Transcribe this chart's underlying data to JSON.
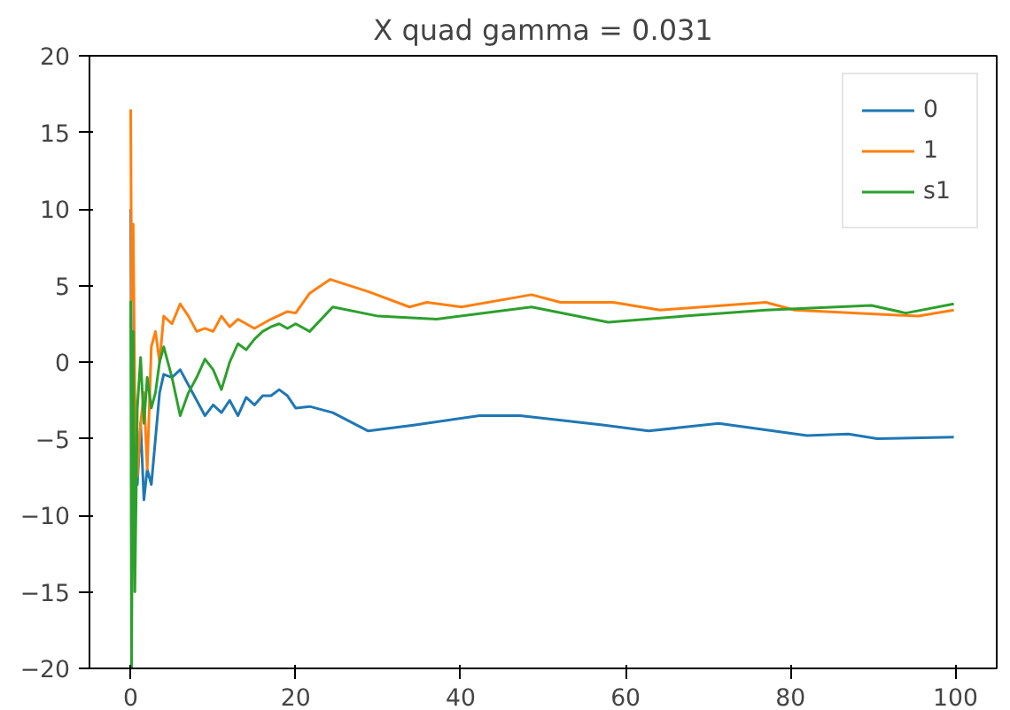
{
  "chart_data": {
    "type": "line",
    "title": "X quad gamma = 0.031",
    "xlim": [
      -5,
      105
    ],
    "ylim": [
      -20,
      20
    ],
    "xticks": [
      0,
      20,
      40,
      60,
      80,
      100
    ],
    "yticks": [
      {
        "value": -20,
        "label": "−20"
      },
      {
        "value": -15,
        "label": "−15"
      },
      {
        "value": -10,
        "label": "−10"
      },
      {
        "value": -5,
        "label": "−5"
      },
      0,
      5,
      10,
      15,
      20
    ],
    "grid": false,
    "legend": "top right",
    "line_style": "solid",
    "marker": "none",
    "series": [
      {
        "name": "0",
        "color": "#1f77b4",
        "x": [
          0,
          0.1,
          0.3,
          0.5,
          0.8,
          1.2,
          1.6,
          2,
          2.5,
          3,
          3.5,
          4,
          5,
          6,
          7,
          8,
          9,
          10,
          11,
          12,
          13,
          14,
          15,
          16,
          17,
          18,
          19,
          20,
          21.7,
          24.5,
          28.8,
          34.5,
          42.3,
          47.2,
          57.2,
          62.8,
          71.3,
          82,
          87,
          90.5,
          99.8
        ],
        "values": [
          10,
          -3,
          2,
          -5,
          -8,
          -4,
          -9,
          -7,
          -8,
          -5,
          -2,
          -0.8,
          -1,
          -0.5,
          -1.5,
          -2.5,
          -3.5,
          -2.8,
          -3.3,
          -2.5,
          -3.5,
          -2.3,
          -2.8,
          -2.2,
          -2.2,
          -1.8,
          -2.2,
          -3,
          -2.9,
          -3.3,
          -4.5,
          -4.1,
          -3.5,
          -3.5,
          -4.1,
          -4.5,
          -4.0,
          -4.8,
          -4.7,
          -5.0,
          -4.9
        ]
      },
      {
        "name": "1",
        "color": "#ff7f0e",
        "x": [
          0,
          0.1,
          0.3,
          0.5,
          0.8,
          1.2,
          1.6,
          2,
          2.5,
          3,
          3.5,
          4,
          5,
          6,
          7,
          8,
          9,
          10,
          11,
          12,
          13,
          14,
          15,
          17,
          19,
          20,
          21.7,
          24.2,
          28.8,
          33.8,
          35.9,
          40.1,
          48.6,
          52.1,
          58.5,
          64.2,
          77,
          80.5,
          95.5,
          99.8
        ],
        "values": [
          16.5,
          4,
          9,
          -2,
          -7.5,
          -4,
          -2,
          -7,
          1,
          2,
          0,
          3,
          2.5,
          3.8,
          3,
          2,
          2.2,
          2,
          3,
          2.3,
          2.8,
          2.5,
          2.2,
          2.8,
          3.3,
          3.2,
          4.5,
          5.4,
          4.6,
          3.6,
          3.9,
          3.6,
          4.4,
          3.9,
          3.9,
          3.4,
          3.9,
          3.4,
          3.0,
          3.4
        ]
      },
      {
        "name": "s1",
        "color": "#2ca02c",
        "x": [
          0,
          0.1,
          0.3,
          0.5,
          0.8,
          1.2,
          1.6,
          2,
          2.5,
          3,
          3.5,
          4,
          5,
          6,
          7,
          8,
          9,
          10,
          11,
          12,
          13,
          14,
          15,
          16,
          17,
          18,
          19,
          20,
          21.7,
          24.5,
          30,
          37.1,
          48.6,
          57.9,
          67.1,
          77,
          89.8,
          94,
          99.8
        ],
        "values": [
          4,
          -20,
          2,
          -15,
          -3,
          0.3,
          -4,
          -1,
          -3,
          -2,
          0,
          1,
          -1,
          -3.5,
          -2,
          -1,
          0.2,
          -0.5,
          -1.8,
          0,
          1.2,
          0.8,
          1.5,
          2,
          2.3,
          2.5,
          2.2,
          2.5,
          2.0,
          3.6,
          3.0,
          2.8,
          3.6,
          2.6,
          3.0,
          3.4,
          3.7,
          3.2,
          3.8
        ]
      }
    ]
  }
}
